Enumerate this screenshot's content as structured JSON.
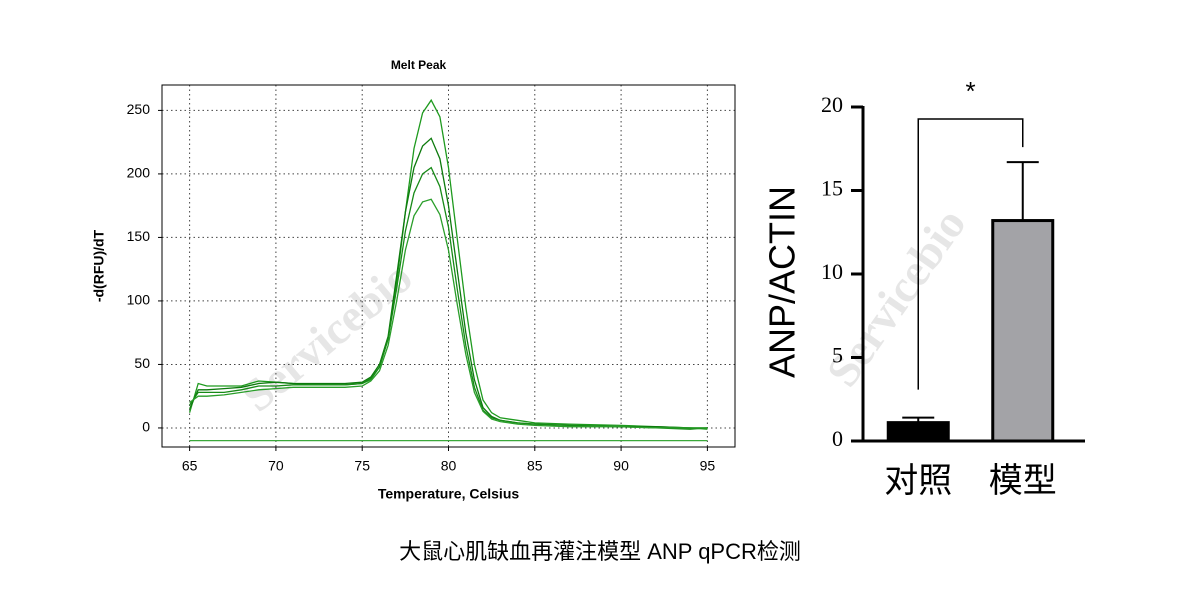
{
  "chart_data": [
    {
      "type": "line",
      "title": "Melt Peak",
      "xlabel": "Temperature, Celsius",
      "ylabel": "-d(RFU)/dT",
      "x": [
        65,
        65.5,
        66,
        67,
        68,
        69,
        70,
        71,
        72,
        73,
        74,
        75,
        75.5,
        76,
        76.5,
        77,
        77.5,
        78,
        78.5,
        79,
        79.5,
        80,
        80.5,
        81,
        81.5,
        82,
        82.5,
        83,
        84,
        85,
        87,
        90,
        92,
        94,
        95
      ],
      "series": [
        {
          "color": "#1e9a1e",
          "values": [
            12,
            35,
            33,
            33,
            33,
            37,
            36,
            35,
            34,
            34,
            34,
            35,
            38,
            48,
            70,
            115,
            170,
            220,
            248,
            258,
            245,
            205,
            150,
            95,
            50,
            22,
            12,
            8,
            6,
            4,
            3,
            2,
            1,
            0,
            -1
          ]
        },
        {
          "color": "#0d7a0d",
          "values": [
            15,
            30,
            30,
            31,
            32,
            35,
            36,
            35,
            35,
            35,
            35,
            36,
            40,
            50,
            72,
            120,
            170,
            205,
            222,
            228,
            212,
            175,
            125,
            75,
            38,
            16,
            9,
            6,
            4,
            3,
            2,
            1,
            1,
            0,
            0
          ]
        },
        {
          "color": "#178a17",
          "values": [
            18,
            28,
            28,
            28,
            30,
            33,
            33,
            34,
            34,
            34,
            34,
            35,
            39,
            48,
            70,
            110,
            155,
            185,
            200,
            205,
            190,
            158,
            110,
            65,
            32,
            14,
            8,
            6,
            4,
            3,
            2,
            1,
            0,
            -1,
            0
          ]
        },
        {
          "color": "#2a9e2a",
          "values": [
            20,
            25,
            25,
            26,
            28,
            30,
            31,
            32,
            32,
            32,
            32,
            33,
            37,
            45,
            65,
            100,
            140,
            167,
            178,
            180,
            168,
            140,
            98,
            58,
            28,
            13,
            7,
            5,
            3,
            2,
            1,
            1,
            0,
            0,
            0
          ]
        },
        {
          "color": "#3aa83a",
          "values": [
            -10,
            -10,
            -10,
            -10,
            -10,
            -10,
            -10,
            -10,
            -10,
            -10,
            -10,
            -10,
            -10,
            -10,
            -10,
            -10,
            -10,
            -10,
            -10,
            -10,
            -10,
            -10,
            -10,
            -10,
            -10,
            -10,
            -10,
            -10,
            -10,
            -10,
            -10,
            -10,
            -10,
            -10,
            -10
          ]
        }
      ],
      "xlim": [
        63.4,
        96.6
      ],
      "ylim": [
        -15,
        270
      ],
      "xticks": [
        65,
        70,
        75,
        80,
        85,
        90,
        95
      ],
      "yticks": [
        0,
        50,
        100,
        150,
        200,
        250
      ],
      "grid": true
    },
    {
      "type": "bar",
      "ylabel": "ANP/ACTIN",
      "categories": [
        "对照",
        "模型"
      ],
      "values": [
        1.1,
        13.2
      ],
      "errors": [
        0.3,
        3.5
      ],
      "colors": [
        "#000000",
        "#a3a3a7"
      ],
      "ylim": [
        0,
        20
      ],
      "yticks": [
        0,
        5,
        10,
        15,
        20
      ],
      "significance": "*"
    }
  ],
  "watermark": "Servicebio",
  "caption": "大鼠心肌缺血再灌注模型 ANP qPCR检测"
}
